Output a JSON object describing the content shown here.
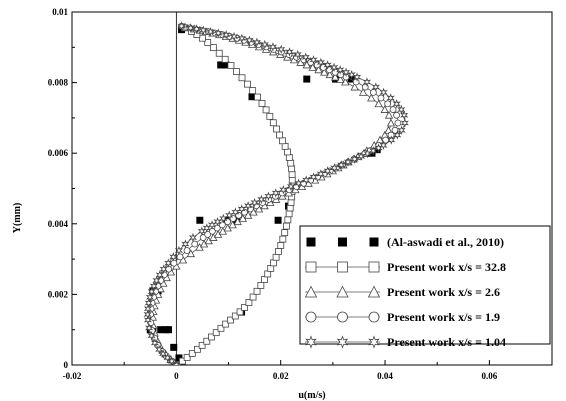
{
  "chart_data": {
    "type": "scatter",
    "xlabel": "u(m/s)",
    "ylabel": "Y(mm)",
    "xlim": [
      -0.02,
      0.072
    ],
    "ylim": [
      0,
      0.01
    ],
    "x_ticks": [
      -0.02,
      0,
      0.02,
      0.04,
      0.06
    ],
    "x_tick_labels": [
      "-0.02",
      "0",
      "0.02",
      "0.04",
      "0.06"
    ],
    "y_ticks": [
      0,
      0.002,
      0.004,
      0.006,
      0.008,
      0.01
    ],
    "y_tick_labels": [
      "0",
      "0.002",
      "0.004",
      "0.006",
      "0.008",
      "0.01"
    ],
    "legend_position": "lower-right",
    "series": [
      {
        "name": "(Al-aswadi et al., 2010)",
        "marker": "filled-square",
        "line": false,
        "points": [
          [
            0.001,
            0.0095
          ],
          [
            0.0085,
            0.0085
          ],
          [
            0.009,
            0.0085
          ],
          [
            0.0095,
            0.0085
          ],
          [
            0.0145,
            0.0076
          ],
          [
            0.025,
            0.0081
          ],
          [
            0.0305,
            0.0081
          ],
          [
            0.0335,
            0.0081
          ],
          [
            0.0365,
            0.006
          ],
          [
            0.0375,
            0.006
          ],
          [
            0.0385,
            0.0061
          ],
          [
            0.0215,
            0.0045
          ],
          [
            0.0195,
            0.0041
          ],
          [
            0.0115,
            0.0041
          ],
          [
            0.0095,
            0.0041
          ],
          [
            0.0045,
            0.0041
          ],
          [
            0.0125,
            0.0015
          ],
          [
            -0.0045,
            0.0021
          ],
          [
            -0.0035,
            0.0021
          ],
          [
            -0.005,
            0.001
          ],
          [
            -0.0045,
            0.001
          ],
          [
            -0.003,
            0.001
          ],
          [
            -0.002,
            0.001
          ],
          [
            -0.0015,
            0.001
          ],
          [
            -0.0005,
            0.0005
          ],
          [
            0.0005,
            0.0002
          ]
        ]
      },
      {
        "name": "Present work x/s = 32.8",
        "marker": "square",
        "line": true,
        "points": [
          [
            0.0002,
            0.0
          ],
          [
            0.0045,
            0.0005
          ],
          [
            0.009,
            0.0011
          ],
          [
            0.0135,
            0.0017
          ],
          [
            0.0172,
            0.0025
          ],
          [
            0.0198,
            0.0033
          ],
          [
            0.0215,
            0.0042
          ],
          [
            0.0222,
            0.005
          ],
          [
            0.0218,
            0.0058
          ],
          [
            0.0195,
            0.0066
          ],
          [
            0.016,
            0.0075
          ],
          [
            0.011,
            0.0084
          ],
          [
            0.0055,
            0.0092
          ],
          [
            0.001,
            0.0096
          ]
        ]
      },
      {
        "name": "Present work x/s = 2.6",
        "marker": "triangle",
        "line": true,
        "points": [
          [
            0.0,
            0.0
          ],
          [
            -0.003,
            0.0005
          ],
          [
            -0.0045,
            0.0012
          ],
          [
            -0.0035,
            0.002
          ],
          [
            0.0,
            0.0028
          ],
          [
            0.008,
            0.0037
          ],
          [
            0.018,
            0.0046
          ],
          [
            0.03,
            0.0055
          ],
          [
            0.0385,
            0.0063
          ],
          [
            0.041,
            0.007
          ],
          [
            0.035,
            0.0078
          ],
          [
            0.025,
            0.0085
          ],
          [
            0.012,
            0.0092
          ],
          [
            0.001,
            0.0096
          ]
        ]
      },
      {
        "name": "Present work x/s = 1.9",
        "marker": "circle",
        "line": true,
        "points": [
          [
            0.0,
            0.0
          ],
          [
            -0.0033,
            0.0005
          ],
          [
            -0.0049,
            0.0012
          ],
          [
            -0.0042,
            0.002
          ],
          [
            -0.001,
            0.0028
          ],
          [
            0.006,
            0.0037
          ],
          [
            0.0165,
            0.0046
          ],
          [
            0.0295,
            0.0055
          ],
          [
            0.0395,
            0.0063
          ],
          [
            0.0424,
            0.007
          ],
          [
            0.037,
            0.0078
          ],
          [
            0.027,
            0.0085
          ],
          [
            0.013,
            0.0092
          ],
          [
            0.001,
            0.0096
          ]
        ]
      },
      {
        "name": "Present work x/s = 1.04",
        "marker": "star",
        "line": true,
        "points": [
          [
            0.0,
            0.0
          ],
          [
            -0.0036,
            0.0005
          ],
          [
            -0.0054,
            0.0012
          ],
          [
            -0.0049,
            0.002
          ],
          [
            -0.002,
            0.0028
          ],
          [
            0.004,
            0.0037
          ],
          [
            0.015,
            0.0046
          ],
          [
            0.029,
            0.0055
          ],
          [
            0.0405,
            0.0063
          ],
          [
            0.0438,
            0.007
          ],
          [
            0.039,
            0.0078
          ],
          [
            0.029,
            0.0085
          ],
          [
            0.014,
            0.0092
          ],
          [
            0.001,
            0.0096
          ]
        ]
      }
    ]
  }
}
